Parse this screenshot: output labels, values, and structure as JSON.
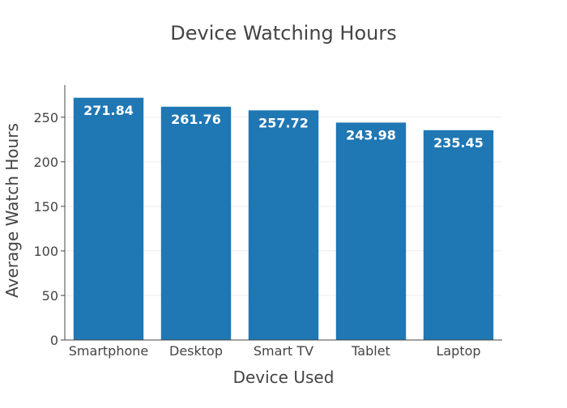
{
  "chart_data": {
    "type": "bar",
    "title": "Device Watching Hours",
    "xlabel": "Device Used",
    "ylabel": "Average Watch Hours",
    "categories": [
      "Smartphone",
      "Desktop",
      "Smart TV",
      "Tablet",
      "Laptop"
    ],
    "values": [
      271.84,
      261.76,
      257.72,
      243.98,
      235.45
    ],
    "value_labels": [
      "271.84",
      "261.76",
      "257.72",
      "243.98",
      "235.45"
    ],
    "ylim": [
      0,
      286.15
    ],
    "yticks": [
      0,
      50,
      100,
      150,
      200,
      250
    ],
    "grid": true,
    "legend": "none",
    "bar_color": "#1f77b4"
  }
}
